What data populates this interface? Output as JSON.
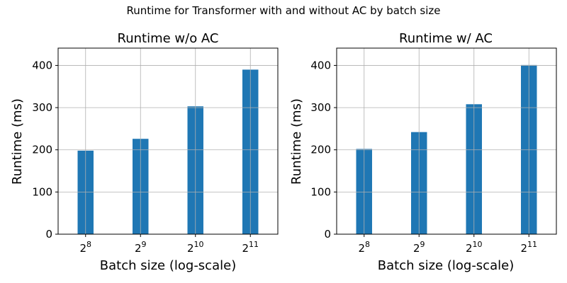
{
  "figure": {
    "suptitle": "Runtime for Transformer with and without AC by batch size"
  },
  "chart_data": [
    {
      "type": "bar",
      "title": "Runtime w/o AC",
      "xlabel": "Batch size (log-scale)",
      "ylabel": "Runtime (ms)",
      "x_scale": "log2",
      "categories": [
        256,
        512,
        1024,
        2048
      ],
      "tick_labels": [
        {
          "base": "2",
          "exp": "8"
        },
        {
          "base": "2",
          "exp": "9"
        },
        {
          "base": "2",
          "exp": "10"
        },
        {
          "base": "2",
          "exp": "11"
        }
      ],
      "values": [
        198,
        226,
        303,
        390
      ],
      "ylim": [
        0,
        441
      ],
      "yticks": [
        0,
        100,
        200,
        300,
        400
      ],
      "grid": true,
      "bar_color": "#1f77b4"
    },
    {
      "type": "bar",
      "title": "Runtime w/ AC",
      "xlabel": "Batch size (log-scale)",
      "ylabel": "Runtime (ms)",
      "x_scale": "log2",
      "categories": [
        256,
        512,
        1024,
        2048
      ],
      "tick_labels": [
        {
          "base": "2",
          "exp": "8"
        },
        {
          "base": "2",
          "exp": "9"
        },
        {
          "base": "2",
          "exp": "10"
        },
        {
          "base": "2",
          "exp": "11"
        }
      ],
      "values": [
        202,
        242,
        308,
        401
      ],
      "ylim": [
        0,
        441
      ],
      "yticks": [
        0,
        100,
        200,
        300,
        400
      ],
      "grid": true,
      "bar_color": "#1f77b4"
    }
  ]
}
